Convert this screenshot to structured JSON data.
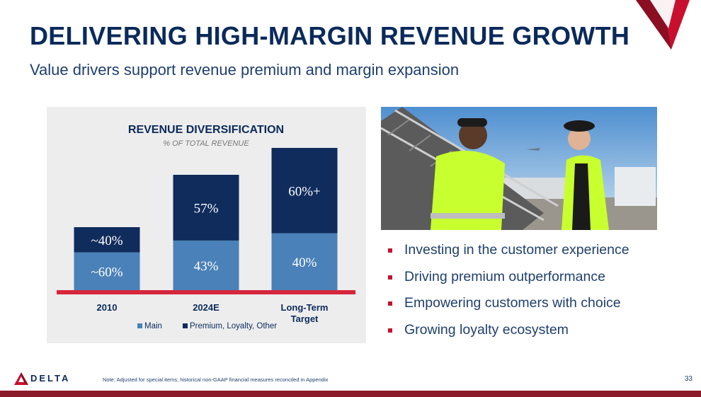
{
  "header": {
    "title": "DELIVERING HIGH-MARGIN REVENUE GROWTH",
    "subtitle": "Value drivers support revenue premium and margin expansion"
  },
  "chart_data": {
    "type": "bar",
    "stacked": true,
    "title": "REVENUE DIVERSIFICATION",
    "subtitle": "% OF TOTAL REVENUE",
    "categories": [
      "2010",
      "2024E",
      "Long-Term Target"
    ],
    "series": [
      {
        "name": "Main",
        "values": [
          60,
          43,
          40
        ],
        "labels": [
          "~60%",
          "43%",
          "40%"
        ],
        "color": "#4a81b8"
      },
      {
        "name": "Premium, Loyalty, Other",
        "values": [
          40,
          57,
          60
        ],
        "labels": [
          "~40%",
          "57%",
          "60%+"
        ],
        "color": "#0f2c5c"
      }
    ],
    "legend_position": "bottom",
    "baseline_color": "#d6263c",
    "grid": false
  },
  "bullets": [
    "Investing in the customer experience",
    "Driving premium outperformance",
    "Empowering customers with choice",
    "Growing loyalty ecosystem"
  ],
  "colors": {
    "brand_navy": "#0b2a5b",
    "brand_red": "#c8102e",
    "panel_bg": "#ededed"
  },
  "footer": {
    "logo_text": "DELTA",
    "note": "Note: Adjusted for special items; historical non-GAAP financial measures reconciled in Appendix",
    "page_number": "33"
  },
  "icons": {
    "corner_logo": "delta-widget-icon",
    "footer_logo": "delta-widget-icon",
    "bullet": "red-square-bullet"
  }
}
